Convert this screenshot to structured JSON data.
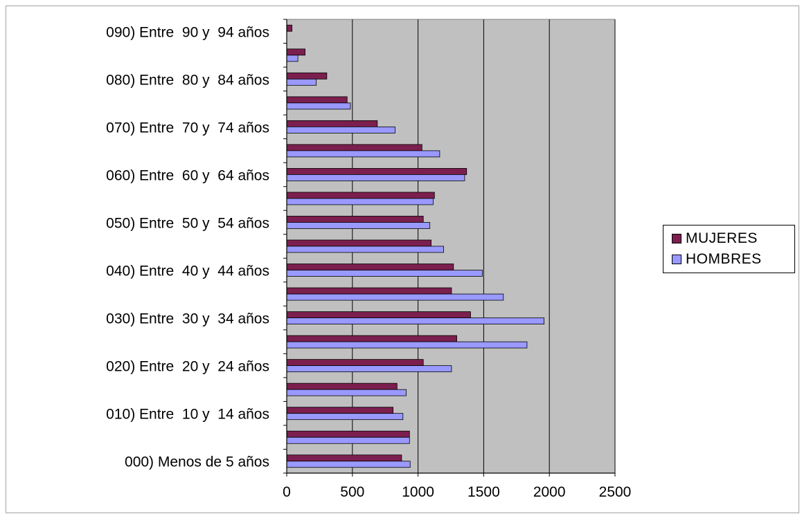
{
  "chart_data": {
    "type": "bar",
    "orientation": "horizontal",
    "categories": [
      "000) Menos de 5 años",
      "",
      "010) Entre  10 y  14 años",
      "",
      "020) Entre  20 y  24 años",
      "",
      "030) Entre  30 y  34 años",
      "",
      "040) Entre  40 y  44 años",
      "",
      "050) Entre  50 y  54 años",
      "",
      "060) Entre  60 y  64 años",
      "",
      "070) Entre  70 y  74 años",
      "",
      "080) Entre  80 y  84 años",
      "",
      "090) Entre  90 y  94 años"
    ],
    "series": [
      {
        "name": "MUJERES",
        "color": "#7b1f4e",
        "values": [
          875,
          935,
          810,
          840,
          1040,
          1295,
          1400,
          1255,
          1270,
          1100,
          1040,
          1125,
          1370,
          1030,
          690,
          460,
          305,
          140,
          40
        ]
      },
      {
        "name": "HOMBRES",
        "color": "#9999ff",
        "values": [
          940,
          935,
          885,
          910,
          1255,
          1830,
          1960,
          1650,
          1490,
          1195,
          1090,
          1115,
          1355,
          1165,
          825,
          485,
          225,
          85,
          0
        ]
      }
    ],
    "xlim": [
      0,
      2500
    ],
    "xticks": [
      "0",
      "500",
      "1000",
      "1500",
      "2000",
      "2500"
    ],
    "grid": true,
    "plot_background": "#c0c0c0",
    "legend_position": "right"
  }
}
